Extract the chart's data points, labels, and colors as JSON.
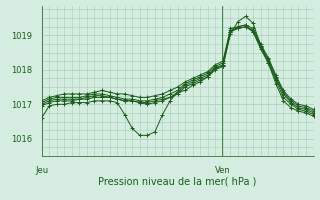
{
  "xlabel": "Pression niveau de la mer( hPa )",
  "background_color": "#d4ede0",
  "grid_color": "#a8cdb8",
  "line_color": "#1a5c1a",
  "text_color": "#1a5c1a",
  "spine_color": "#1a5c1a",
  "ylim": [
    1015.5,
    1019.85
  ],
  "xlim": [
    0,
    1
  ],
  "yticks": [
    1016,
    1017,
    1018,
    1019
  ],
  "day_labels": [
    "Jeu",
    "Ven"
  ],
  "day_positions": [
    0.0,
    0.665
  ],
  "vline_pos": 0.665,
  "series": [
    [
      1016.6,
      1016.95,
      1017.0,
      1017.0,
      1017.05,
      1017.05,
      1017.05,
      1017.1,
      1017.1,
      1017.1,
      1017.05,
      1016.7,
      1016.3,
      1016.1,
      1016.1,
      1016.2,
      1016.7,
      1017.1,
      1017.35,
      1017.4,
      1017.55,
      1017.65,
      1017.8,
      1018.05,
      1018.1,
      1019.05,
      1019.4,
      1019.55,
      1019.35,
      1018.7,
      1018.2,
      1017.6,
      1017.1,
      1016.9,
      1016.8,
      1016.75,
      1016.65
    ],
    [
      1016.95,
      1017.05,
      1017.1,
      1017.1,
      1017.1,
      1017.15,
      1017.15,
      1017.2,
      1017.2,
      1017.2,
      1017.15,
      1017.1,
      1017.1,
      1017.05,
      1017.0,
      1017.05,
      1017.1,
      1017.2,
      1017.3,
      1017.5,
      1017.6,
      1017.7,
      1017.8,
      1018.0,
      1018.1,
      1019.1,
      1019.25,
      1019.3,
      1019.1,
      1018.6,
      1018.2,
      1017.7,
      1017.2,
      1017.0,
      1016.85,
      1016.8,
      1016.7
    ],
    [
      1017.0,
      1017.1,
      1017.15,
      1017.15,
      1017.15,
      1017.15,
      1017.2,
      1017.25,
      1017.25,
      1017.2,
      1017.15,
      1017.1,
      1017.1,
      1017.05,
      1017.05,
      1017.1,
      1017.15,
      1017.2,
      1017.35,
      1017.55,
      1017.65,
      1017.75,
      1017.85,
      1018.05,
      1018.15,
      1019.1,
      1019.2,
      1019.25,
      1019.1,
      1018.65,
      1018.25,
      1017.75,
      1017.3,
      1017.05,
      1016.9,
      1016.85,
      1016.75
    ],
    [
      1017.05,
      1017.15,
      1017.2,
      1017.2,
      1017.2,
      1017.2,
      1017.25,
      1017.3,
      1017.3,
      1017.25,
      1017.2,
      1017.15,
      1017.15,
      1017.1,
      1017.1,
      1017.15,
      1017.2,
      1017.3,
      1017.4,
      1017.6,
      1017.7,
      1017.8,
      1017.9,
      1018.1,
      1018.2,
      1019.15,
      1019.2,
      1019.25,
      1019.15,
      1018.7,
      1018.3,
      1017.8,
      1017.35,
      1017.1,
      1016.95,
      1016.9,
      1016.8
    ],
    [
      1017.1,
      1017.2,
      1017.25,
      1017.3,
      1017.3,
      1017.3,
      1017.3,
      1017.35,
      1017.4,
      1017.35,
      1017.3,
      1017.3,
      1017.25,
      1017.2,
      1017.2,
      1017.25,
      1017.3,
      1017.4,
      1017.5,
      1017.65,
      1017.75,
      1017.85,
      1017.95,
      1018.15,
      1018.25,
      1019.2,
      1019.25,
      1019.3,
      1019.2,
      1018.75,
      1018.35,
      1017.85,
      1017.4,
      1017.15,
      1017.0,
      1016.95,
      1016.85
    ]
  ],
  "ytick_fontsize": 6,
  "xtick_fontsize": 6
}
